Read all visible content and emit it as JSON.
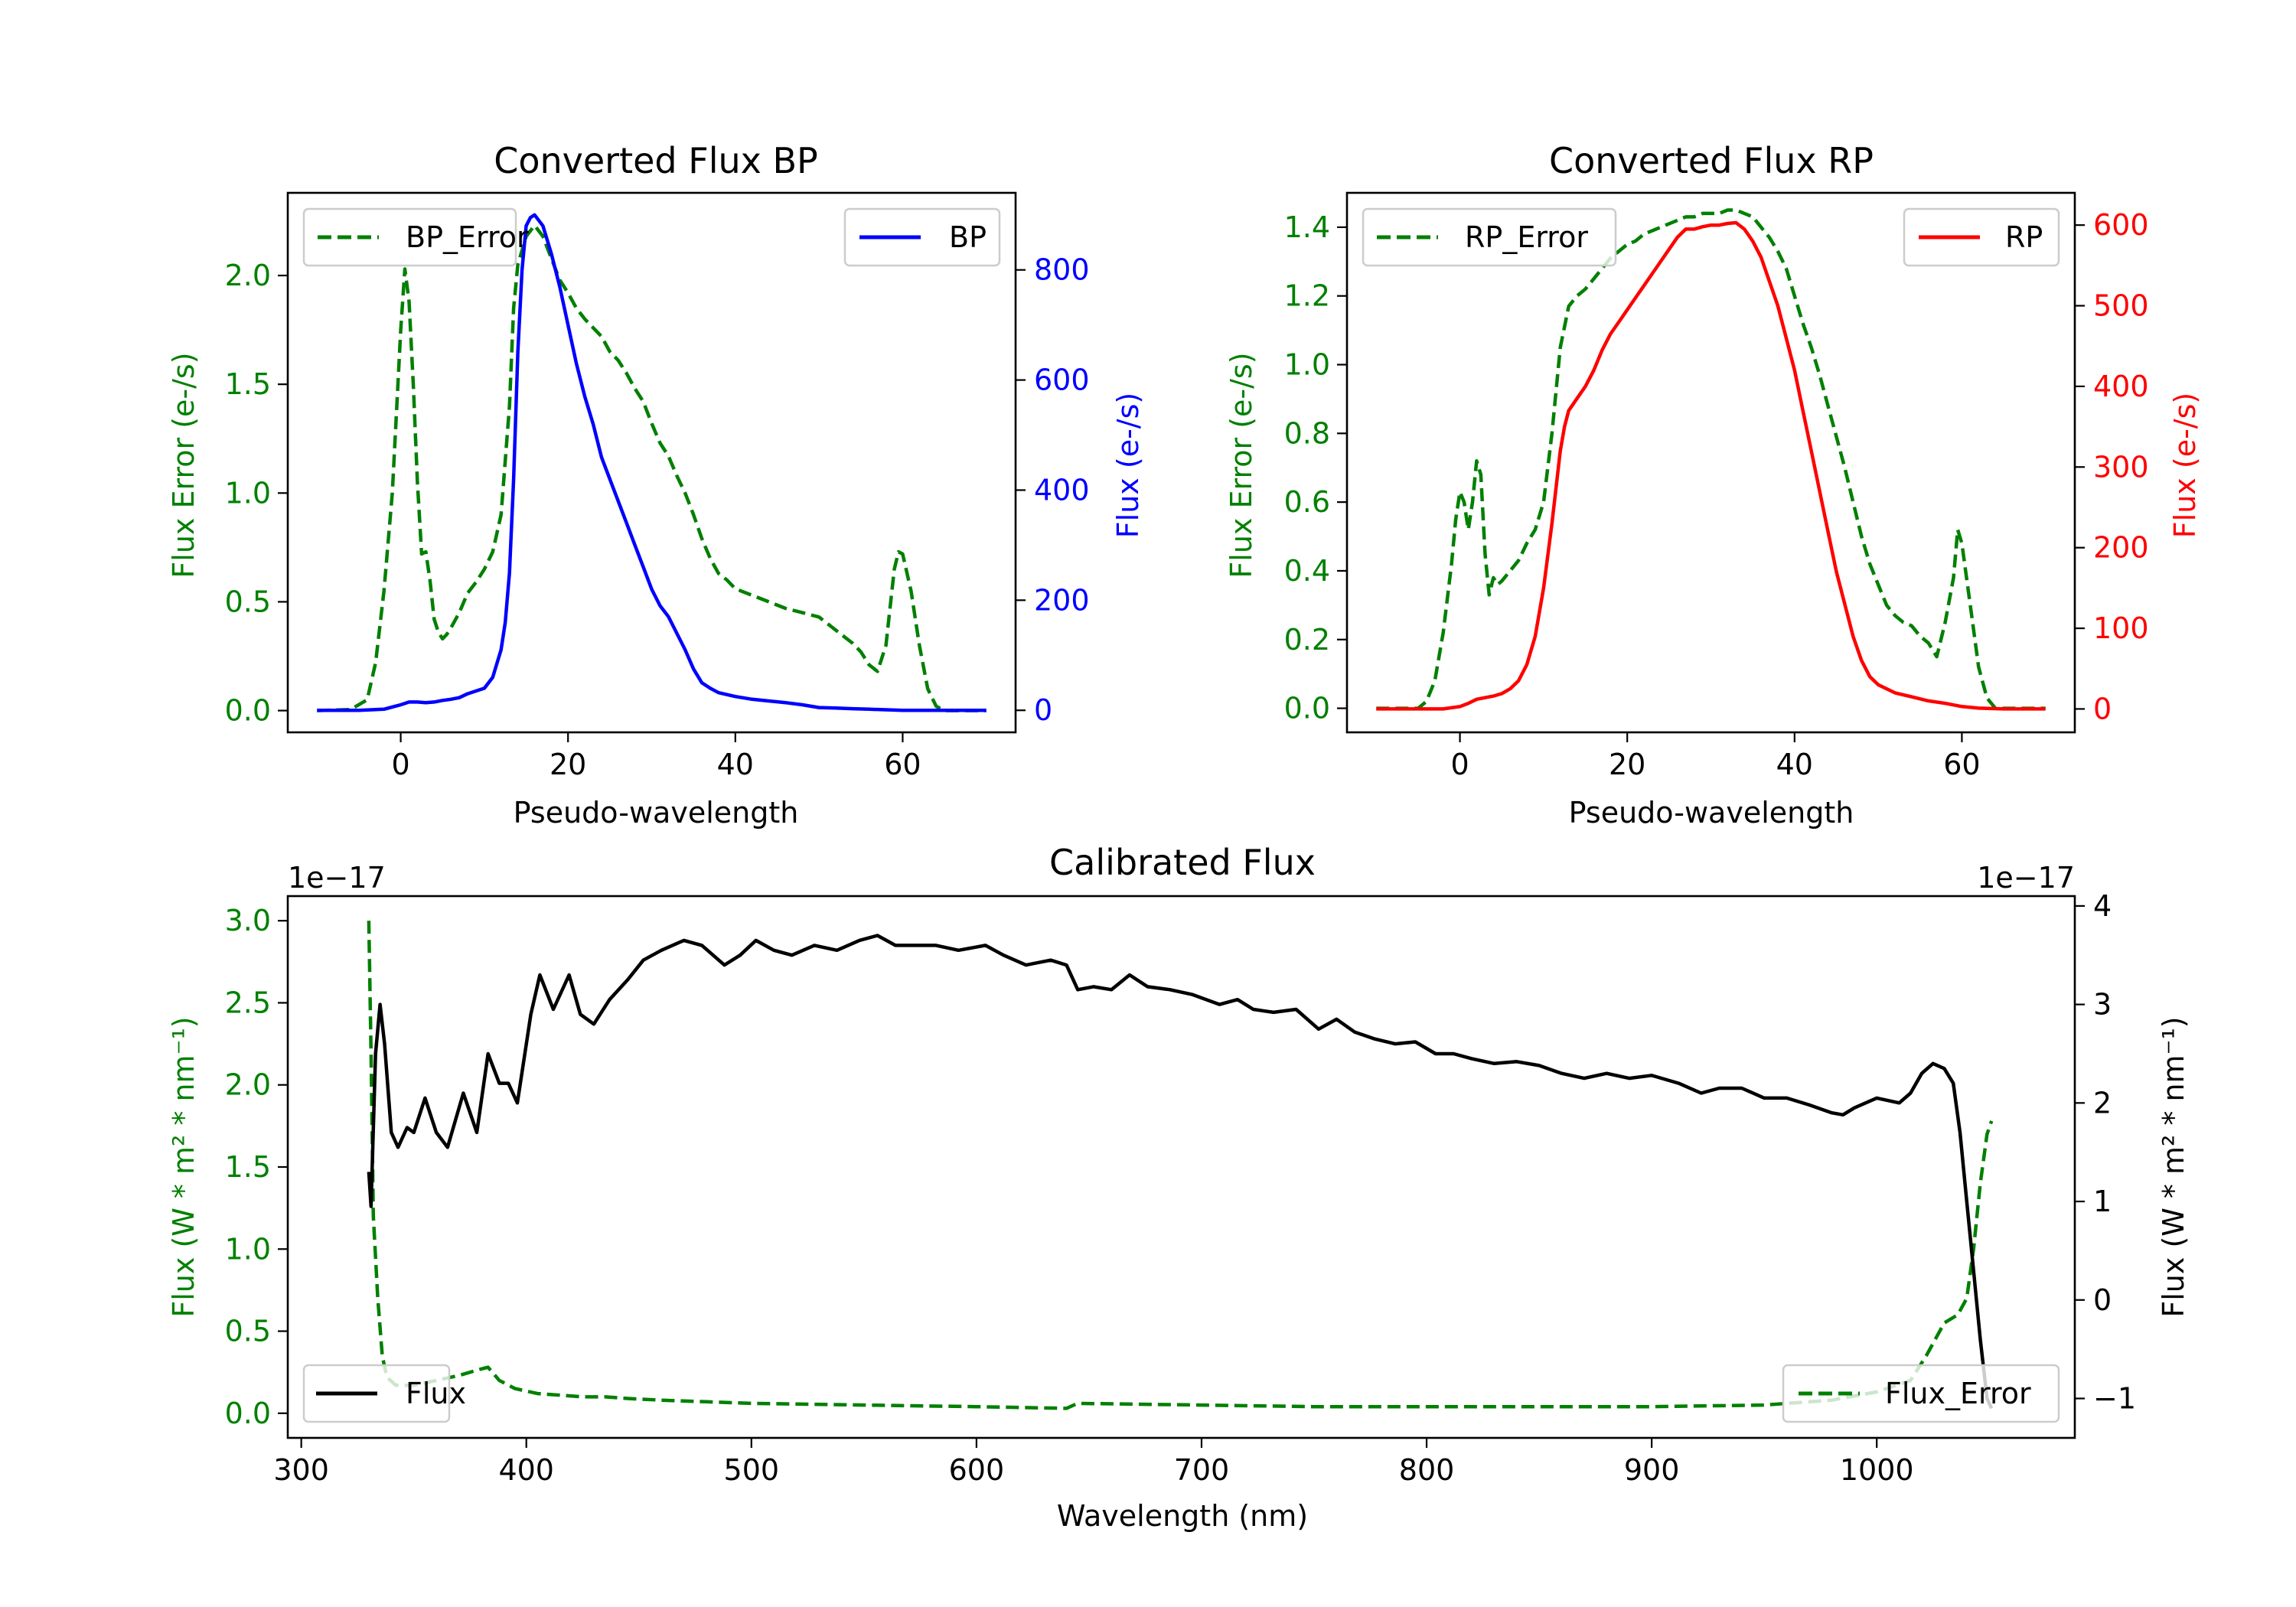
{
  "chart_data": [
    {
      "id": "bp",
      "type": "line",
      "title": "Converted Flux BP",
      "xlabel": "Pseudo-wavelength",
      "ylabel_left": "Flux Error (e-/s)",
      "ylabel_right": "Flux (e-/s)",
      "xlim": [
        -13.5,
        73.5
      ],
      "ylim_left": [
        -0.1,
        2.38
      ],
      "ylim_right": [
        -40,
        940
      ],
      "xticks": [
        0,
        20,
        40,
        60
      ],
      "yticks_left": [
        "0.0",
        "0.5",
        "1.0",
        "1.5",
        "2.0"
      ],
      "yticks_left_values": [
        0,
        0.5,
        1.0,
        1.5,
        2.0
      ],
      "yticks_right": [
        "0",
        "200",
        "400",
        "600",
        "800"
      ],
      "yticks_right_values": [
        0,
        200,
        400,
        600,
        800
      ],
      "left_color": "#008000",
      "right_color": "#0000ff",
      "legend_left": {
        "label": "BP_Error",
        "position": "upper-left"
      },
      "legend_right": {
        "label": "BP",
        "position": "upper-right"
      },
      "series": [
        {
          "name": "BP_Error",
          "axis": "left",
          "style": "dashed",
          "color": "#008000",
          "x": [
            -10,
            -6,
            -4,
            -3,
            -2,
            -1,
            0,
            0.5,
            1,
            1.5,
            2,
            2.5,
            3,
            3.5,
            4,
            4.5,
            5,
            5.5,
            6,
            7,
            8,
            9,
            10,
            11,
            12,
            13,
            13.5,
            14,
            15,
            16,
            17,
            18,
            19,
            20,
            21,
            22,
            23,
            24,
            25,
            26,
            27,
            28,
            29,
            30,
            31,
            32,
            33,
            34,
            35,
            36,
            37,
            38,
            39,
            40,
            42,
            44,
            46,
            48,
            50,
            52,
            54,
            55,
            56,
            57,
            58,
            59,
            59.5,
            60,
            61,
            62,
            63,
            64,
            65,
            67,
            70
          ],
          "y": [
            0,
            0.005,
            0.05,
            0.22,
            0.55,
            1.0,
            1.75,
            2.03,
            1.88,
            1.5,
            1.05,
            0.72,
            0.73,
            0.6,
            0.42,
            0.36,
            0.33,
            0.35,
            0.38,
            0.45,
            0.54,
            0.59,
            0.65,
            0.73,
            0.9,
            1.4,
            1.85,
            2.05,
            2.18,
            2.23,
            2.18,
            2.08,
            1.98,
            1.92,
            1.85,
            1.8,
            1.76,
            1.72,
            1.65,
            1.61,
            1.55,
            1.48,
            1.42,
            1.32,
            1.23,
            1.17,
            1.08,
            1.0,
            0.9,
            0.79,
            0.7,
            0.63,
            0.6,
            0.56,
            0.53,
            0.5,
            0.47,
            0.45,
            0.43,
            0.37,
            0.31,
            0.27,
            0.21,
            0.18,
            0.3,
            0.65,
            0.73,
            0.72,
            0.55,
            0.3,
            0.1,
            0.02,
            0.0,
            0.0,
            0.0
          ]
        },
        {
          "name": "BP",
          "axis": "right",
          "style": "solid",
          "color": "#0000ff",
          "x": [
            -10,
            -5,
            -2,
            0,
            1,
            2,
            3,
            4,
            5,
            6,
            7,
            8,
            9,
            10,
            11,
            12,
            12.5,
            13,
            13.5,
            14,
            14.5,
            15,
            15.5,
            16,
            17,
            18,
            19,
            20,
            21,
            22,
            23,
            24,
            25,
            26,
            27,
            28,
            29,
            30,
            31,
            32,
            33,
            34,
            35,
            36,
            37,
            38,
            40,
            42,
            44,
            46,
            48,
            50,
            52,
            54,
            56,
            58,
            60,
            62,
            65,
            70
          ],
          "y": [
            0,
            0,
            2,
            10,
            15,
            15,
            14,
            15,
            18,
            20,
            23,
            30,
            35,
            40,
            60,
            110,
            160,
            250,
            420,
            650,
            800,
            880,
            895,
            900,
            880,
            830,
            770,
            700,
            630,
            570,
            520,
            460,
            420,
            380,
            340,
            300,
            260,
            220,
            190,
            170,
            140,
            110,
            75,
            50,
            40,
            32,
            25,
            20,
            17,
            14,
            10,
            5,
            4,
            3,
            2,
            1,
            0,
            0,
            0,
            0
          ]
        }
      ]
    },
    {
      "id": "rp",
      "type": "line",
      "title": "Converted Flux RP",
      "xlabel": "Pseudo-wavelength",
      "ylabel_left": "Flux Error (e-/s)",
      "ylabel_right": "Flux (e-/s)",
      "xlim": [
        -13.5,
        73.5
      ],
      "ylim_left": [
        -0.07,
        1.5
      ],
      "ylim_right": [
        -29,
        640
      ],
      "xticks": [
        0,
        20,
        40,
        60
      ],
      "yticks_left": [
        "0.0",
        "0.2",
        "0.4",
        "0.6",
        "0.8",
        "1.0",
        "1.2",
        "1.4"
      ],
      "yticks_left_values": [
        0,
        0.2,
        0.4,
        0.6,
        0.8,
        1.0,
        1.2,
        1.4
      ],
      "yticks_right": [
        "0",
        "100",
        "200",
        "300",
        "400",
        "500",
        "600"
      ],
      "yticks_right_values": [
        0,
        100,
        200,
        300,
        400,
        500,
        600
      ],
      "left_color": "#008000",
      "right_color": "#ff0000",
      "legend_left": {
        "label": "RP_Error",
        "position": "upper-left"
      },
      "legend_right": {
        "label": "RP",
        "position": "upper-right"
      },
      "series": [
        {
          "name": "RP_Error",
          "axis": "left",
          "style": "dashed",
          "color": "#008000",
          "x": [
            -10,
            -5,
            -4,
            -3,
            -2,
            -1,
            -0.5,
            0,
            0.5,
            1,
            1.5,
            2,
            2.5,
            3,
            3.5,
            4,
            4.5,
            5,
            6,
            7,
            8,
            9,
            10,
            11,
            12,
            13,
            14,
            15,
            16,
            17,
            18,
            19,
            20,
            21,
            22,
            23,
            24,
            25,
            26,
            27,
            28,
            29,
            30,
            31,
            32,
            33,
            34,
            35,
            36,
            37,
            38,
            39,
            40,
            41,
            42,
            43,
            44,
            45,
            46,
            47,
            48,
            49,
            50,
            51,
            52,
            53,
            54,
            55,
            56,
            57,
            58,
            59,
            59.5,
            60,
            61,
            62,
            63,
            64,
            65,
            67,
            70
          ],
          "y": [
            0,
            0.0,
            0.02,
            0.08,
            0.22,
            0.42,
            0.55,
            0.63,
            0.6,
            0.52,
            0.6,
            0.72,
            0.68,
            0.45,
            0.33,
            0.38,
            0.36,
            0.37,
            0.4,
            0.43,
            0.48,
            0.52,
            0.6,
            0.8,
            1.05,
            1.17,
            1.2,
            1.22,
            1.25,
            1.28,
            1.31,
            1.33,
            1.35,
            1.36,
            1.38,
            1.39,
            1.4,
            1.41,
            1.42,
            1.43,
            1.43,
            1.44,
            1.44,
            1.44,
            1.45,
            1.45,
            1.44,
            1.43,
            1.4,
            1.37,
            1.33,
            1.28,
            1.2,
            1.12,
            1.05,
            0.97,
            0.88,
            0.79,
            0.7,
            0.6,
            0.5,
            0.42,
            0.36,
            0.3,
            0.27,
            0.25,
            0.24,
            0.21,
            0.19,
            0.15,
            0.25,
            0.38,
            0.52,
            0.48,
            0.3,
            0.12,
            0.03,
            0.0,
            0.0,
            0.0,
            0.0
          ]
        },
        {
          "name": "RP",
          "axis": "right",
          "style": "solid",
          "color": "#ff0000",
          "x": [
            -10,
            -5,
            -2,
            0,
            1,
            2,
            3,
            4,
            5,
            6,
            7,
            8,
            9,
            10,
            11,
            12,
            12.5,
            13,
            14,
            15,
            16,
            17,
            18,
            19,
            20,
            21,
            22,
            23,
            24,
            25,
            26,
            27,
            28,
            29,
            30,
            31,
            32,
            33,
            34,
            35,
            36,
            37,
            38,
            39,
            40,
            41,
            42,
            43,
            44,
            45,
            46,
            47,
            48,
            49,
            50,
            51,
            52,
            54,
            56,
            58,
            60,
            62,
            65,
            70
          ],
          "y": [
            0,
            0,
            0,
            3,
            7,
            12,
            14,
            16,
            19,
            25,
            35,
            55,
            90,
            150,
            230,
            320,
            350,
            370,
            385,
            400,
            420,
            445,
            465,
            480,
            495,
            510,
            525,
            540,
            555,
            570,
            585,
            595,
            595,
            598,
            600,
            600,
            602,
            603,
            595,
            580,
            560,
            530,
            500,
            460,
            420,
            370,
            320,
            270,
            220,
            170,
            130,
            90,
            60,
            40,
            30,
            25,
            20,
            15,
            10,
            7,
            3,
            1,
            0,
            0
          ]
        }
      ]
    },
    {
      "id": "calibrated",
      "type": "line",
      "title": "Calibrated Flux",
      "xlabel": "Wavelength (nm)",
      "ylabel_left": "Flux (W * m² * nm⁻¹)",
      "ylabel_right": "Flux (W * m² * nm⁻¹)",
      "offset_left": "1e−17",
      "offset_right": "1e−17",
      "xlim": [
        294,
        1088
      ],
      "ylim_left": [
        -0.15,
        3.15
      ],
      "ylim_right": [
        -1.4,
        4.1
      ],
      "xticks": [
        300,
        400,
        500,
        600,
        700,
        800,
        900,
        1000
      ],
      "yticks_left": [
        "0.0",
        "0.5",
        "1.0",
        "1.5",
        "2.0",
        "2.5",
        "3.0"
      ],
      "yticks_left_values": [
        0,
        0.5,
        1.0,
        1.5,
        2.0,
        2.5,
        3.0
      ],
      "yticks_right": [
        "−1",
        "0",
        "1",
        "2",
        "3",
        "4"
      ],
      "yticks_right_values": [
        -1,
        0,
        1,
        2,
        3,
        4
      ],
      "left_color": "#008000",
      "right_color": "#000000",
      "legend_left": {
        "label": "Flux",
        "position": "lower-left"
      },
      "legend_right": {
        "label": "Flux_Error",
        "position": "lower-right"
      },
      "series": [
        {
          "name": "Flux_Error",
          "axis": "left",
          "style": "dashed",
          "color": "#008000",
          "x": [
            330,
            331,
            332,
            334,
            336,
            338,
            342,
            350,
            360,
            370,
            380,
            383,
            388,
            395,
            405,
            415,
            425,
            435,
            445,
            460,
            480,
            500,
            550,
            600,
            640,
            645,
            700,
            750,
            800,
            850,
            900,
            950,
            980,
            1000,
            1015,
            1022,
            1030,
            1036,
            1040,
            1043,
            1046,
            1049,
            1051
          ],
          "y": [
            3.0,
            2.2,
            1.2,
            0.7,
            0.35,
            0.22,
            0.17,
            0.17,
            0.2,
            0.23,
            0.27,
            0.28,
            0.2,
            0.15,
            0.12,
            0.11,
            0.1,
            0.1,
            0.09,
            0.08,
            0.07,
            0.06,
            0.05,
            0.04,
            0.03,
            0.06,
            0.05,
            0.04,
            0.04,
            0.04,
            0.04,
            0.05,
            0.08,
            0.13,
            0.2,
            0.35,
            0.55,
            0.6,
            0.7,
            1.0,
            1.4,
            1.7,
            1.78
          ]
        },
        {
          "name": "Flux",
          "axis": "right",
          "style": "solid",
          "color": "#000000",
          "x": [
            330,
            331,
            333,
            335,
            337,
            340,
            343,
            347,
            350,
            355,
            360,
            365,
            372,
            378,
            383,
            388,
            392,
            396,
            402,
            406,
            412,
            419,
            424,
            430,
            437,
            445,
            452,
            460,
            470,
            478,
            488,
            495,
            502,
            510,
            518,
            528,
            538,
            548,
            556,
            564,
            572,
            582,
            592,
            604,
            612,
            622,
            633,
            640,
            645,
            652,
            660,
            668,
            676,
            686,
            696,
            708,
            716,
            723,
            732,
            742,
            752,
            760,
            768,
            777,
            786,
            795,
            804,
            812,
            820,
            830,
            840,
            850,
            860,
            870,
            880,
            890,
            900,
            912,
            922,
            930,
            940,
            950,
            960,
            970,
            980,
            985,
            990,
            1000,
            1010,
            1015,
            1020,
            1025,
            1030,
            1034,
            1037,
            1040,
            1043,
            1046,
            1049,
            1051
          ],
          "y": [
            1.3,
            0.95,
            2.5,
            3.0,
            2.6,
            1.7,
            1.55,
            1.75,
            1.7,
            2.05,
            1.7,
            1.55,
            2.1,
            1.7,
            2.5,
            2.2,
            2.2,
            2.0,
            2.9,
            3.3,
            2.95,
            3.3,
            2.9,
            2.8,
            3.05,
            3.25,
            3.45,
            3.55,
            3.65,
            3.6,
            3.4,
            3.5,
            3.65,
            3.55,
            3.5,
            3.6,
            3.55,
            3.65,
            3.7,
            3.6,
            3.6,
            3.6,
            3.55,
            3.6,
            3.5,
            3.4,
            3.45,
            3.4,
            3.15,
            3.18,
            3.15,
            3.3,
            3.18,
            3.15,
            3.1,
            3.0,
            3.05,
            2.95,
            2.92,
            2.95,
            2.75,
            2.85,
            2.72,
            2.65,
            2.6,
            2.62,
            2.5,
            2.5,
            2.45,
            2.4,
            2.42,
            2.38,
            2.3,
            2.25,
            2.3,
            2.25,
            2.28,
            2.2,
            2.1,
            2.15,
            2.15,
            2.05,
            2.05,
            1.98,
            1.9,
            1.88,
            1.95,
            2.05,
            2.0,
            2.1,
            2.3,
            2.4,
            2.35,
            2.2,
            1.7,
            1.0,
            0.3,
            -0.4,
            -1.0,
            -1.1
          ]
        }
      ]
    }
  ]
}
